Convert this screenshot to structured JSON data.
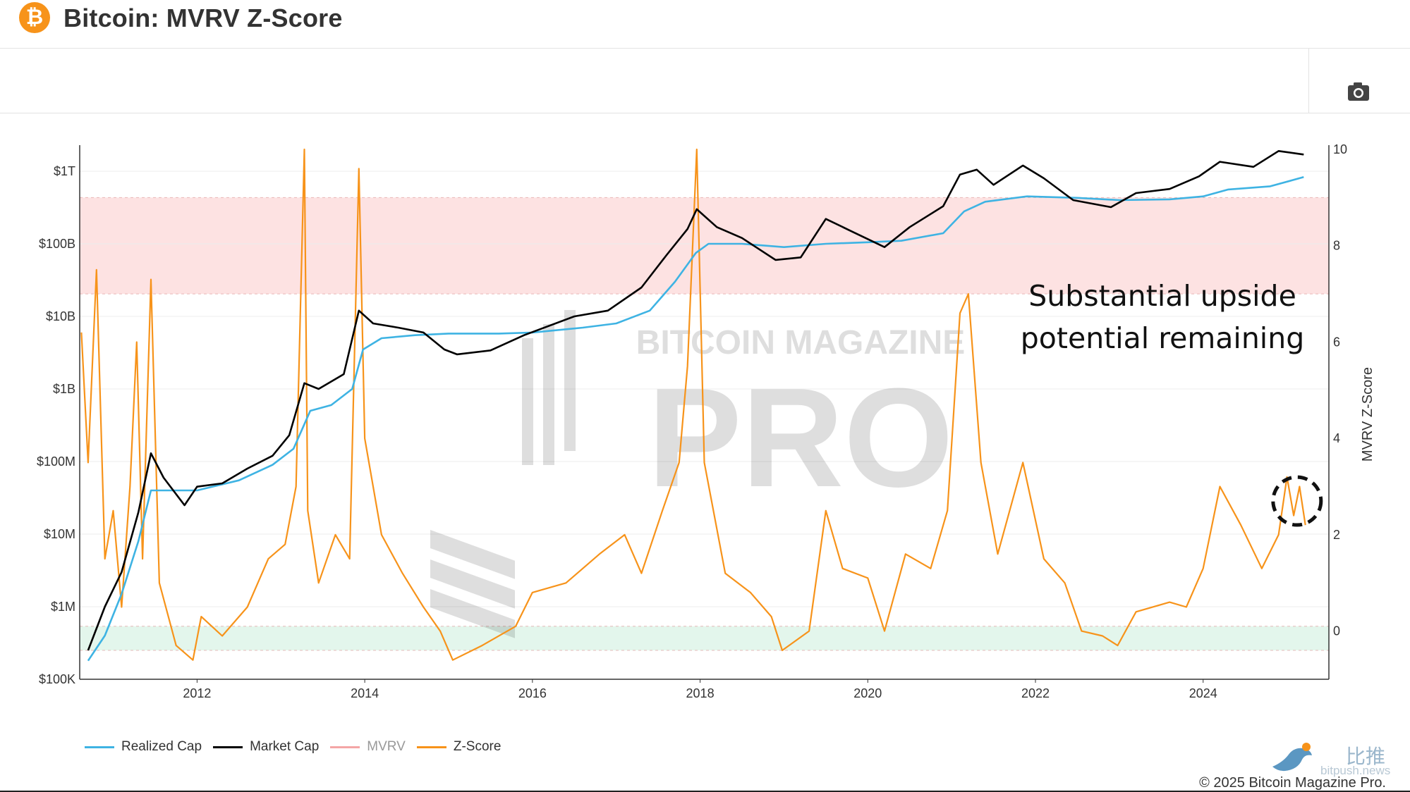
{
  "header": {
    "logo_glyph": "₿",
    "logo_color": "#f7931a",
    "title": "Bitcoin: MVRV Z-Score"
  },
  "toolbar": {
    "camera_icon": "camera-icon"
  },
  "annotation": {
    "line1": "Substantial upside",
    "line2": "potential remaining"
  },
  "watermark": {
    "text_top": "BITCOIN MAGAZINE",
    "text_big": "PRO"
  },
  "legend": [
    {
      "label": "Realized Cap",
      "color": "#3eb3e3"
    },
    {
      "label": "Market Cap",
      "color": "#000000"
    },
    {
      "label": "MVRV",
      "color": "#f4a6a6"
    },
    {
      "label": "Z-Score",
      "color": "#f7931a"
    }
  ],
  "footer": {
    "bitpush_cn": "比推",
    "bitpush_en": "bitpush.news",
    "copyright": "© 2025 Bitcoin Magazine Pro."
  },
  "chart_data": {
    "type": "line",
    "x_ticks": [
      "2012",
      "2014",
      "2016",
      "2018",
      "2020",
      "2022",
      "2024"
    ],
    "y_left": {
      "scale": "log",
      "range": [
        100000,
        2000000000000
      ],
      "ticks": [
        "$100K",
        "$1M",
        "$10M",
        "$100M",
        "$1B",
        "$10B",
        "$100B",
        "$1T"
      ]
    },
    "y_right": {
      "label": "MVRV Z-Score",
      "range": [
        -1,
        10
      ],
      "ticks": [
        "0",
        "2",
        "4",
        "6",
        "8",
        "10"
      ]
    },
    "bands": [
      {
        "name": "overvalued",
        "from": 7,
        "to": 9,
        "color": "#fde2e2"
      },
      {
        "name": "undervalued",
        "from": -0.4,
        "to": 0.1,
        "color": "#e3f6ec"
      }
    ],
    "series": [
      {
        "name": "Market Cap",
        "color": "#000000",
        "axis": "left",
        "points": [
          [
            2010.7,
            250000.0
          ],
          [
            2010.9,
            1000000.0
          ],
          [
            2011.1,
            3000000.0
          ],
          [
            2011.3,
            20000000.0
          ],
          [
            2011.45,
            130000000.0
          ],
          [
            2011.6,
            60000000.0
          ],
          [
            2011.85,
            25000000.0
          ],
          [
            2012.0,
            45000000.0
          ],
          [
            2012.3,
            50000000.0
          ],
          [
            2012.6,
            80000000.0
          ],
          [
            2012.9,
            120000000.0
          ],
          [
            2013.1,
            230000000.0
          ],
          [
            2013.28,
            1200000000.0
          ],
          [
            2013.45,
            1000000000.0
          ],
          [
            2013.75,
            1600000000.0
          ],
          [
            2013.93,
            12000000000.0
          ],
          [
            2014.1,
            8000000000.0
          ],
          [
            2014.4,
            7000000000.0
          ],
          [
            2014.7,
            6000000000.0
          ],
          [
            2014.95,
            3500000000.0
          ],
          [
            2015.1,
            3000000000.0
          ],
          [
            2015.5,
            3400000000.0
          ],
          [
            2015.9,
            5500000000.0
          ],
          [
            2016.5,
            10000000000.0
          ],
          [
            2016.9,
            12000000000.0
          ],
          [
            2017.3,
            25000000000.0
          ],
          [
            2017.6,
            70000000000.0
          ],
          [
            2017.85,
            160000000000.0
          ],
          [
            2017.96,
            300000000000.0
          ],
          [
            2018.2,
            170000000000.0
          ],
          [
            2018.5,
            120000000000.0
          ],
          [
            2018.9,
            60000000000.0
          ],
          [
            2019.2,
            65000000000.0
          ],
          [
            2019.5,
            220000000000.0
          ],
          [
            2019.8,
            150000000000.0
          ],
          [
            2020.2,
            90000000000.0
          ],
          [
            2020.5,
            170000000000.0
          ],
          [
            2020.9,
            330000000000.0
          ],
          [
            2021.1,
            900000000000.0
          ],
          [
            2021.3,
            1050000000000.0
          ],
          [
            2021.5,
            650000000000.0
          ],
          [
            2021.85,
            1200000000000.0
          ],
          [
            2022.1,
            800000000000.0
          ],
          [
            2022.45,
            400000000000.0
          ],
          [
            2022.9,
            320000000000.0
          ],
          [
            2023.2,
            500000000000.0
          ],
          [
            2023.6,
            570000000000.0
          ],
          [
            2023.95,
            850000000000.0
          ],
          [
            2024.2,
            1350000000000.0
          ],
          [
            2024.6,
            1150000000000.0
          ],
          [
            2024.9,
            1900000000000.0
          ],
          [
            2025.2,
            1700000000000.0
          ]
        ]
      },
      {
        "name": "Realized Cap",
        "color": "#3eb3e3",
        "axis": "left",
        "points": [
          [
            2010.7,
            180000.0
          ],
          [
            2010.9,
            400000.0
          ],
          [
            2011.1,
            1500000.0
          ],
          [
            2011.3,
            8000000.0
          ],
          [
            2011.45,
            40000000.0
          ],
          [
            2011.7,
            40000000.0
          ],
          [
            2012.0,
            40000000.0
          ],
          [
            2012.5,
            55000000.0
          ],
          [
            2012.9,
            90000000.0
          ],
          [
            2013.15,
            150000000.0
          ],
          [
            2013.35,
            500000000.0
          ],
          [
            2013.6,
            600000000.0
          ],
          [
            2013.85,
            1000000000.0
          ],
          [
            2013.98,
            3500000000.0
          ],
          [
            2014.2,
            5000000000.0
          ],
          [
            2014.6,
            5500000000.0
          ],
          [
            2015.0,
            5800000000.0
          ],
          [
            2015.6,
            5800000000.0
          ],
          [
            2016.0,
            6000000000.0
          ],
          [
            2016.6,
            7000000000.0
          ],
          [
            2017.0,
            8000000000.0
          ],
          [
            2017.4,
            12000000000.0
          ],
          [
            2017.7,
            30000000000.0
          ],
          [
            2017.95,
            75000000000.0
          ],
          [
            2018.1,
            100000000000.0
          ],
          [
            2018.5,
            100000000000.0
          ],
          [
            2019.0,
            90000000000.0
          ],
          [
            2019.5,
            100000000000.0
          ],
          [
            2020.0,
            105000000000.0
          ],
          [
            2020.4,
            110000000000.0
          ],
          [
            2020.9,
            140000000000.0
          ],
          [
            2021.15,
            280000000000.0
          ],
          [
            2021.4,
            380000000000.0
          ],
          [
            2021.9,
            450000000000.0
          ],
          [
            2022.5,
            430000000000.0
          ],
          [
            2023.0,
            400000000000.0
          ],
          [
            2023.6,
            410000000000.0
          ],
          [
            2024.0,
            450000000000.0
          ],
          [
            2024.3,
            560000000000.0
          ],
          [
            2024.8,
            620000000000.0
          ],
          [
            2025.2,
            830000000000.0
          ]
        ]
      },
      {
        "name": "Z-Score",
        "color": "#f7931a",
        "axis": "right",
        "points": [
          [
            2010.62,
            6.2
          ],
          [
            2010.7,
            3.5
          ],
          [
            2010.8,
            7.5
          ],
          [
            2010.9,
            1.5
          ],
          [
            2011.0,
            2.5
          ],
          [
            2011.1,
            0.5
          ],
          [
            2011.2,
            3.0
          ],
          [
            2011.28,
            6.0
          ],
          [
            2011.35,
            1.5
          ],
          [
            2011.45,
            7.3
          ],
          [
            2011.55,
            1.0
          ],
          [
            2011.75,
            -0.3
          ],
          [
            2011.95,
            -0.6
          ],
          [
            2012.05,
            0.3
          ],
          [
            2012.3,
            -0.1
          ],
          [
            2012.6,
            0.5
          ],
          [
            2012.85,
            1.5
          ],
          [
            2013.05,
            1.8
          ],
          [
            2013.18,
            3.0
          ],
          [
            2013.28,
            10.0
          ],
          [
            2013.32,
            2.5
          ],
          [
            2013.45,
            1.0
          ],
          [
            2013.65,
            2.0
          ],
          [
            2013.82,
            1.5
          ],
          [
            2013.93,
            9.6
          ],
          [
            2014.0,
            4.0
          ],
          [
            2014.2,
            2.0
          ],
          [
            2014.45,
            1.2
          ],
          [
            2014.7,
            0.5
          ],
          [
            2014.9,
            0.0
          ],
          [
            2015.05,
            -0.6
          ],
          [
            2015.4,
            -0.3
          ],
          [
            2015.8,
            0.1
          ],
          [
            2016.0,
            0.8
          ],
          [
            2016.4,
            1.0
          ],
          [
            2016.8,
            1.6
          ],
          [
            2017.1,
            2.0
          ],
          [
            2017.3,
            1.2
          ],
          [
            2017.55,
            2.5
          ],
          [
            2017.75,
            3.5
          ],
          [
            2017.85,
            5.5
          ],
          [
            2017.96,
            10.0
          ],
          [
            2018.05,
            3.5
          ],
          [
            2018.3,
            1.2
          ],
          [
            2018.6,
            0.8
          ],
          [
            2018.85,
            0.3
          ],
          [
            2018.98,
            -0.4
          ],
          [
            2019.3,
            0.0
          ],
          [
            2019.5,
            2.5
          ],
          [
            2019.7,
            1.3
          ],
          [
            2020.0,
            1.1
          ],
          [
            2020.2,
            0.0
          ],
          [
            2020.45,
            1.6
          ],
          [
            2020.75,
            1.3
          ],
          [
            2020.95,
            2.5
          ],
          [
            2021.1,
            6.6
          ],
          [
            2021.2,
            7.0
          ],
          [
            2021.35,
            3.5
          ],
          [
            2021.55,
            1.6
          ],
          [
            2021.85,
            3.5
          ],
          [
            2022.1,
            1.5
          ],
          [
            2022.35,
            1.0
          ],
          [
            2022.55,
            0.0
          ],
          [
            2022.8,
            -0.1
          ],
          [
            2022.98,
            -0.3
          ],
          [
            2023.2,
            0.4
          ],
          [
            2023.6,
            0.6
          ],
          [
            2023.8,
            0.5
          ],
          [
            2024.0,
            1.3
          ],
          [
            2024.2,
            3.0
          ],
          [
            2024.45,
            2.2
          ],
          [
            2024.7,
            1.3
          ],
          [
            2024.9,
            2.0
          ],
          [
            2025.0,
            3.2
          ],
          [
            2025.08,
            2.4
          ],
          [
            2025.15,
            3.0
          ],
          [
            2025.22,
            2.2
          ]
        ]
      }
    ]
  }
}
